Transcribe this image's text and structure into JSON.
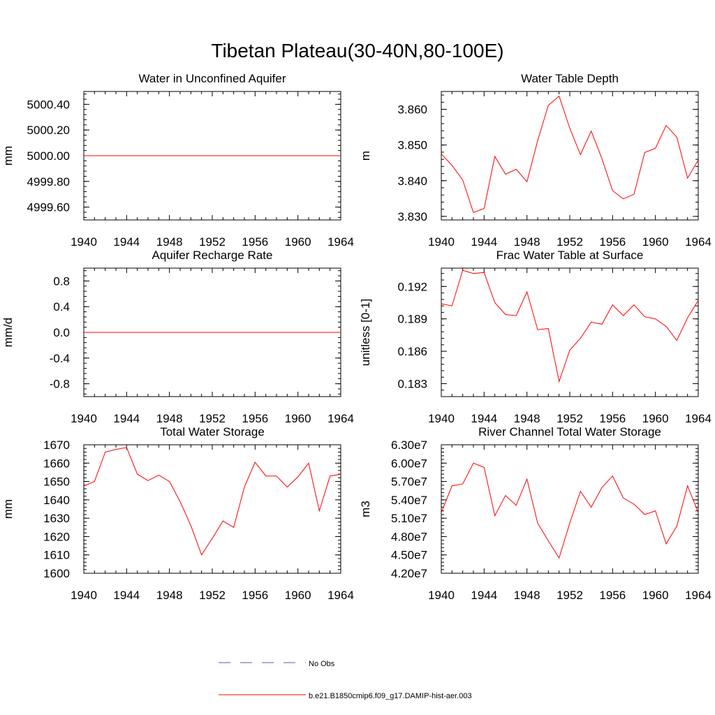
{
  "page": {
    "title": "Tibetan Plateau(30-40N,80-100E)"
  },
  "legend": [
    {
      "label": "No Obs",
      "color": "#5a5aa8",
      "style": "dashed"
    },
    {
      "label": "b.e21.B1850cmip6.f09_g17.DAMIP-hist-aer.003",
      "color": "#ff0000",
      "style": "solid"
    }
  ],
  "chart_data": [
    {
      "type": "line",
      "title": "Water in Unconfined Aquifer",
      "ylabel": "mm",
      "xlim": [
        1940,
        1964
      ],
      "ylim": [
        4999.5,
        5000.5
      ],
      "x_ticks": [
        1940,
        1944,
        1948,
        1952,
        1956,
        1960,
        1964
      ],
      "y_ticks": [
        "4999.60",
        "4999.80",
        "5000.00",
        "5000.20",
        "5000.40"
      ],
      "y_tick_values": [
        4999.6,
        4999.8,
        5000.0,
        5000.2,
        5000.4
      ],
      "x": [
        1940,
        1941,
        1942,
        1943,
        1944,
        1945,
        1946,
        1947,
        1948,
        1949,
        1950,
        1951,
        1952,
        1953,
        1954,
        1955,
        1956,
        1957,
        1958,
        1959,
        1960,
        1961,
        1962,
        1963,
        1964
      ],
      "series": [
        {
          "color": "#ff0000",
          "values": [
            5000,
            5000,
            5000,
            5000,
            5000,
            5000,
            5000,
            5000,
            5000,
            5000,
            5000,
            5000,
            5000,
            5000,
            5000,
            5000,
            5000,
            5000,
            5000,
            5000,
            5000,
            5000,
            5000,
            5000,
            5000
          ]
        }
      ]
    },
    {
      "type": "line",
      "title": "Water Table Depth",
      "ylabel": "m",
      "xlim": [
        1940,
        1964
      ],
      "ylim": [
        3.829,
        3.865
      ],
      "x_ticks": [
        1940,
        1944,
        1948,
        1952,
        1956,
        1960,
        1964
      ],
      "y_ticks": [
        "3.830",
        "3.840",
        "3.850",
        "3.860"
      ],
      "y_tick_values": [
        3.83,
        3.84,
        3.85,
        3.86
      ],
      "x": [
        1940,
        1941,
        1942,
        1943,
        1944,
        1945,
        1946,
        1947,
        1948,
        1949,
        1950,
        1951,
        1952,
        1953,
        1954,
        1955,
        1956,
        1957,
        1958,
        1959,
        1960,
        1961,
        1962,
        1963,
        1964
      ],
      "series": [
        {
          "color": "#ff0000",
          "values": [
            3.8475,
            3.8443,
            3.8402,
            3.8311,
            3.8322,
            3.8468,
            3.8418,
            3.8432,
            3.8397,
            3.8512,
            3.8611,
            3.8637,
            3.8547,
            3.8473,
            3.8539,
            3.8462,
            3.8372,
            3.8349,
            3.8362,
            3.8479,
            3.8491,
            3.8555,
            3.8522,
            3.8407,
            3.8458
          ]
        }
      ]
    },
    {
      "type": "line",
      "title": "Aquifer Recharge Rate",
      "ylabel": "mm/d",
      "xlim": [
        1940,
        1964
      ],
      "ylim": [
        -1.0,
        1.0
      ],
      "x_ticks": [
        1940,
        1944,
        1948,
        1952,
        1956,
        1960,
        1964
      ],
      "y_ticks": [
        "-0.8",
        "-0.4",
        "0.0",
        "0.4",
        "0.8"
      ],
      "y_tick_values": [
        -0.8,
        -0.4,
        0.0,
        0.4,
        0.8
      ],
      "x": [
        1940,
        1941,
        1942,
        1943,
        1944,
        1945,
        1946,
        1947,
        1948,
        1949,
        1950,
        1951,
        1952,
        1953,
        1954,
        1955,
        1956,
        1957,
        1958,
        1959,
        1960,
        1961,
        1962,
        1963,
        1964
      ],
      "series": [
        {
          "color": "#ff0000",
          "values": [
            0,
            0,
            0,
            0,
            0,
            0,
            0,
            0,
            0,
            0,
            0,
            0,
            0,
            0,
            0,
            0,
            0,
            0,
            0,
            0,
            0,
            0,
            0,
            0,
            0
          ]
        }
      ]
    },
    {
      "type": "line",
      "title": "Frac Water Table at Surface",
      "ylabel": "unitless [0-1]",
      "xlim": [
        1940,
        1964
      ],
      "ylim": [
        0.1818,
        0.1937
      ],
      "x_ticks": [
        1940,
        1944,
        1948,
        1952,
        1956,
        1960,
        1964
      ],
      "y_ticks": [
        "0.183",
        "0.186",
        "0.189",
        "0.192"
      ],
      "y_tick_values": [
        0.183,
        0.186,
        0.189,
        0.192
      ],
      "x": [
        1940,
        1941,
        1942,
        1943,
        1944,
        1945,
        1946,
        1947,
        1948,
        1949,
        1950,
        1951,
        1952,
        1953,
        1954,
        1955,
        1956,
        1957,
        1958,
        1959,
        1960,
        1961,
        1962,
        1963,
        1964
      ],
      "series": [
        {
          "color": "#ff0000",
          "values": [
            0.1904,
            0.1902,
            0.1935,
            0.1932,
            0.1933,
            0.1905,
            0.1894,
            0.1893,
            0.1915,
            0.188,
            0.1881,
            0.1832,
            0.1861,
            0.1872,
            0.1887,
            0.1885,
            0.1903,
            0.1893,
            0.1903,
            0.1892,
            0.189,
            0.1883,
            0.187,
            0.1891,
            0.1907
          ]
        }
      ]
    },
    {
      "type": "line",
      "title": "Total Water Storage",
      "ylabel": "mm",
      "xlim": [
        1940,
        1964
      ],
      "ylim": [
        1600,
        1670
      ],
      "x_ticks": [
        1940,
        1944,
        1948,
        1952,
        1956,
        1960,
        1964
      ],
      "y_ticks": [
        "1600",
        "1610",
        "1620",
        "1630",
        "1640",
        "1650",
        "1660",
        "1670"
      ],
      "y_tick_values": [
        1600,
        1610,
        1620,
        1630,
        1640,
        1650,
        1660,
        1670
      ],
      "x": [
        1940,
        1941,
        1942,
        1943,
        1944,
        1945,
        1946,
        1947,
        1948,
        1949,
        1950,
        1951,
        1952,
        1953,
        1954,
        1955,
        1956,
        1957,
        1958,
        1959,
        1960,
        1961,
        1962,
        1963,
        1964
      ],
      "series": [
        {
          "color": "#ff0000",
          "values": [
            1647.5,
            1650.0,
            1666.0,
            1667.5,
            1668.5,
            1654.0,
            1650.5,
            1653.5,
            1650.0,
            1639.0,
            1626.0,
            1610.0,
            1619.0,
            1628.5,
            1625.0,
            1647.0,
            1660.5,
            1653.0,
            1653.0,
            1647.0,
            1652.5,
            1660.0,
            1634.0,
            1653.0,
            1654.0
          ]
        }
      ]
    },
    {
      "type": "line",
      "title": "River Channel Total Water Storage",
      "ylabel": "m3",
      "xlim": [
        1940,
        1964
      ],
      "ylim": [
        42000000,
        63000000
      ],
      "x_ticks": [
        1940,
        1944,
        1948,
        1952,
        1956,
        1960,
        1964
      ],
      "y_ticks": [
        "4.20e7",
        "4.50e7",
        "4.80e7",
        "5.10e7",
        "5.40e7",
        "5.70e7",
        "6.00e7",
        "6.30e7"
      ],
      "y_tick_values": [
        42000000,
        45000000,
        48000000,
        51000000,
        54000000,
        57000000,
        60000000,
        63000000
      ],
      "x": [
        1940,
        1941,
        1942,
        1943,
        1944,
        1945,
        1946,
        1947,
        1948,
        1949,
        1950,
        1951,
        1952,
        1953,
        1954,
        1955,
        1956,
        1957,
        1958,
        1959,
        1960,
        1961,
        1962,
        1963,
        1964
      ],
      "series": [
        {
          "color": "#ff0000",
          "values": [
            51900000,
            56300000,
            56600000,
            60000000,
            59300000,
            51400000,
            54700000,
            53100000,
            57400000,
            50200000,
            47300000,
            44500000,
            50200000,
            55400000,
            52800000,
            56000000,
            57900000,
            54300000,
            53300000,
            51600000,
            52200000,
            46800000,
            49700000,
            56300000,
            51900000
          ]
        }
      ]
    }
  ]
}
